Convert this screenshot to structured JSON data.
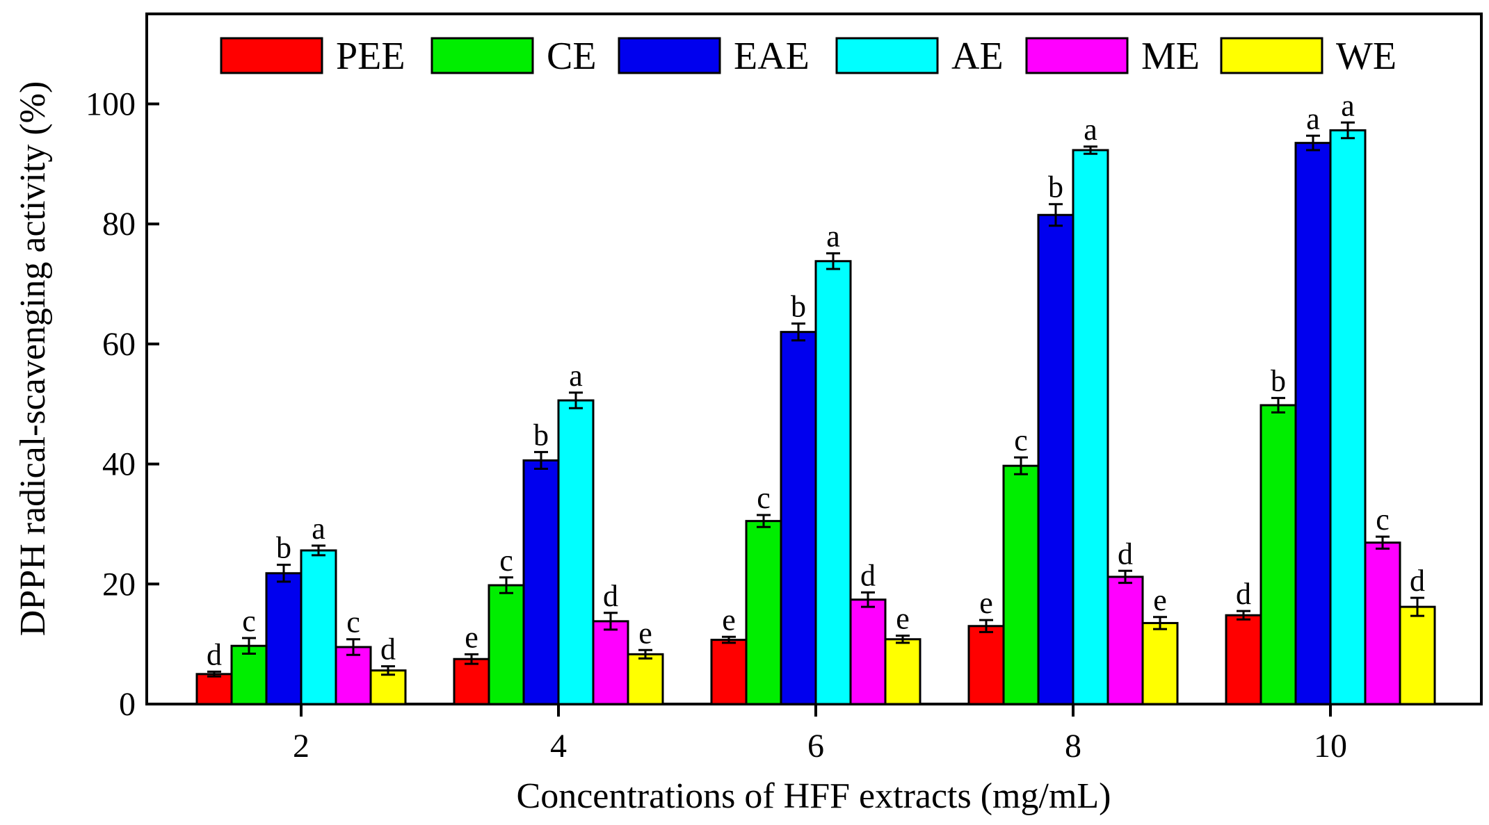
{
  "chart_data": {
    "type": "bar",
    "title": "",
    "xlabel": "Concentrations of HFF extracts (mg/mL)",
    "ylabel": "DPPH radical-scavenging activity (%)",
    "ylim": [
      0,
      115
    ],
    "yticks": [
      "0",
      "20",
      "40",
      "60",
      "80",
      "100"
    ],
    "categories": [
      "2",
      "4",
      "6",
      "8",
      "10"
    ],
    "legend_position": "top",
    "series": [
      {
        "name": "PEE",
        "color": "#ff0000",
        "values": [
          5.0,
          7.5,
          10.7,
          13.0,
          14.8
        ],
        "errors": [
          0.4,
          0.8,
          0.5,
          1.0,
          0.7
        ],
        "labels": [
          "d",
          "e",
          "e",
          "e",
          "d"
        ]
      },
      {
        "name": "CE",
        "color": "#00ee00",
        "values": [
          9.7,
          19.8,
          30.5,
          39.7,
          49.8
        ],
        "errors": [
          1.3,
          1.3,
          1.0,
          1.4,
          1.2
        ],
        "labels": [
          "c",
          "c",
          "c",
          "c",
          "b"
        ]
      },
      {
        "name": "EAE",
        "color": "#0000ee",
        "values": [
          21.8,
          40.6,
          62.0,
          81.5,
          93.5
        ],
        "errors": [
          1.4,
          1.4,
          1.4,
          1.8,
          1.2
        ],
        "labels": [
          "b",
          "b",
          "b",
          "b",
          "a"
        ]
      },
      {
        "name": "AE",
        "color": "#00ffff",
        "values": [
          25.6,
          50.6,
          73.8,
          92.3,
          95.6
        ],
        "errors": [
          0.8,
          1.3,
          1.3,
          0.6,
          1.3
        ],
        "labels": [
          "a",
          "a",
          "a",
          "a",
          "a"
        ]
      },
      {
        "name": "ME",
        "color": "#ff00ff",
        "values": [
          9.5,
          13.8,
          17.4,
          21.2,
          26.9
        ],
        "errors": [
          1.3,
          1.4,
          1.2,
          1.0,
          1.0
        ],
        "labels": [
          "c",
          "d",
          "d",
          "d",
          "c"
        ]
      },
      {
        "name": "WE",
        "color": "#ffff00",
        "values": [
          5.6,
          8.3,
          10.8,
          13.5,
          16.2
        ],
        "errors": [
          0.7,
          0.7,
          0.6,
          1.0,
          1.5
        ],
        "labels": [
          "d",
          "e",
          "e",
          "e",
          "d"
        ]
      }
    ]
  }
}
